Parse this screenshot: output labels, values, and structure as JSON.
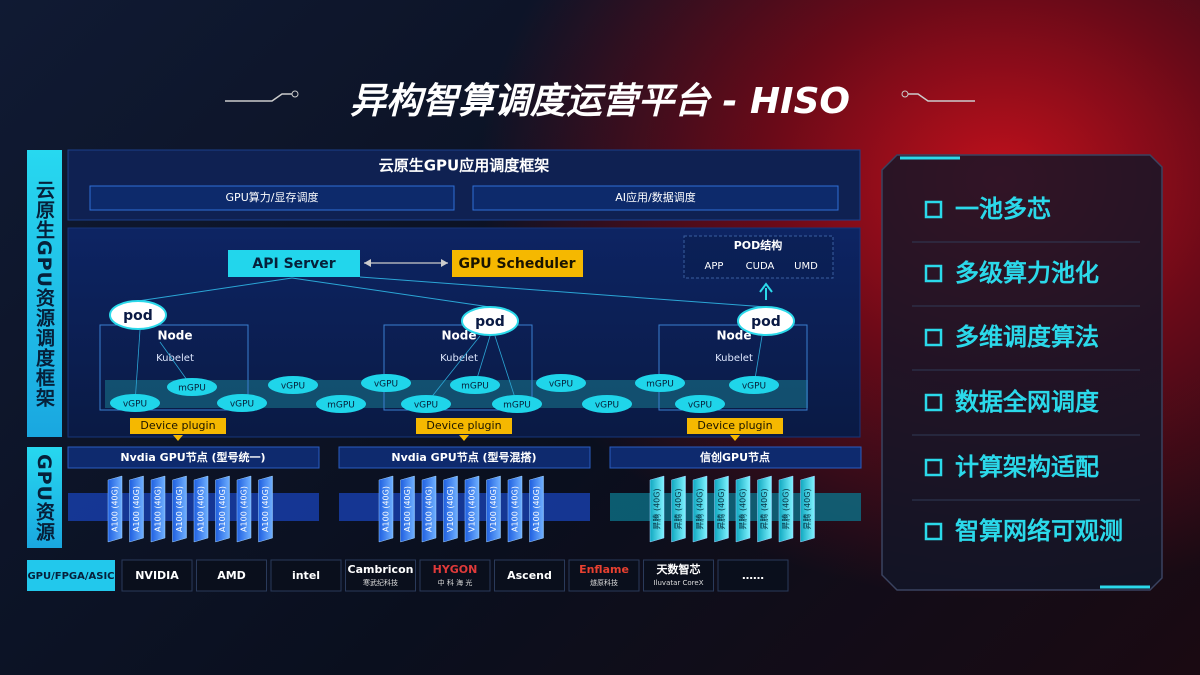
{
  "title": "异构智算调度运营平台 - HISO",
  "side_labels": [
    "云原生GPU资源调度框架",
    "GPU资源"
  ],
  "framework": {
    "title": "云原生GPU应用调度框架",
    "tabs": [
      "GPU算力/显存调度",
      "AI应用/数据调度"
    ]
  },
  "api_server": "API Server",
  "scheduler": "GPU Scheduler",
  "pod_structure": {
    "title": "POD结构",
    "items": [
      "APP",
      "CUDA",
      "UMD"
    ]
  },
  "nodes": [
    {
      "pod": "pod",
      "label": "Node",
      "kubelet": "Kubelet",
      "plugin": "Device plugin"
    },
    {
      "pod": "pod",
      "label": "Node",
      "kubelet": "Kubelet",
      "plugin": "Device plugin"
    },
    {
      "pod": "pod",
      "label": "Node",
      "kubelet": "Kubelet",
      "plugin": "Device plugin"
    }
  ],
  "gpu_units": [
    "mGPU",
    "vGPU",
    "vGPU",
    "mGPU",
    "vGPU",
    "mGPU",
    "vGPU",
    "vGPU",
    "vGPU",
    "mGPU",
    "vGPU",
    "mGPU",
    "vGPU",
    "vGPU"
  ],
  "gpu_groups": [
    {
      "title": "Nvdia GPU节点 (型号统一)",
      "cards": [
        "A100 (40G)",
        "A100 (40G)",
        "A100 (40G)",
        "A100 (40G)",
        "A100 (40G)",
        "A100 (40G)",
        "A100 (40G)",
        "A100 (40G)"
      ]
    },
    {
      "title": "Nvdia GPU节点 (型号混搭)",
      "cards": [
        "A100 (40G)",
        "A100 (40G)",
        "A100 (40G)",
        "V100 (40G)",
        "V100 (40G)",
        "V100 (40G)",
        "A100 (40G)",
        "A100 (40G)"
      ]
    },
    {
      "title": "信创GPU节点",
      "cards": [
        "昇腾 (40G)",
        "昇腾 (40G)",
        "昇腾 (40G)",
        "昇腾 (40G)",
        "昇腾 (40G)",
        "昇腾 (40G)",
        "昇腾 (40G)",
        "昇腾 (40G)"
      ]
    }
  ],
  "vendors": {
    "label": "GPU/FPGA/ASIC",
    "logos": [
      {
        "name": "NVIDIA"
      },
      {
        "name": "AMD"
      },
      {
        "name": "intel"
      },
      {
        "name": "Cambricon",
        "sub": "寒武纪科技"
      },
      {
        "name": "HYGON",
        "sub": "中 科 海 光"
      },
      {
        "name": "Ascend"
      },
      {
        "name": "Enflame",
        "sub": "燧原科技"
      },
      {
        "name": "天数智芯",
        "sub": "Iluvatar CoreX"
      },
      {
        "name": "……"
      }
    ]
  },
  "features": [
    "一池多芯",
    "多级算力池化",
    "多维调度算法",
    "数据全网调度",
    "计算架构适配",
    "智算网络可观测"
  ]
}
